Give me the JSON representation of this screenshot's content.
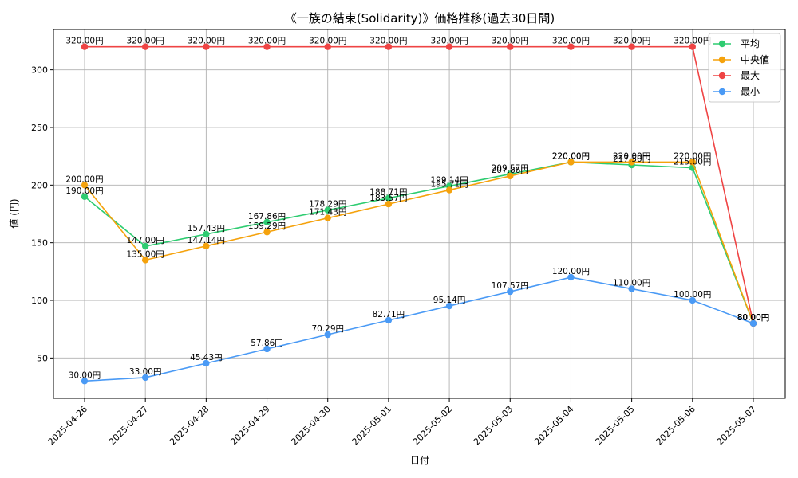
{
  "chart_data": {
    "type": "line",
    "title": "《一族の結束(Solidarity)》価格推移(過去30日間)",
    "xlabel": "日付",
    "ylabel": "値 (円)",
    "categories": [
      "2025-04-26",
      "2025-04-27",
      "2025-04-28",
      "2025-04-29",
      "2025-04-30",
      "2025-05-01",
      "2025-05-02",
      "2025-05-03",
      "2025-05-04",
      "2025-05-05",
      "2025-05-06",
      "2025-05-07"
    ],
    "yticks": [
      50,
      100,
      150,
      200,
      250,
      300
    ],
    "ylim": [
      15,
      335
    ],
    "grid": true,
    "legend_position": "top-right",
    "label_suffix": "円",
    "series": [
      {
        "name": "平均",
        "color": "#2ecc71",
        "values": [
          190.0,
          147.0,
          157.43,
          167.86,
          178.29,
          188.71,
          199.14,
          209.57,
          220.0,
          217.5,
          215.0,
          80.0
        ]
      },
      {
        "name": "中央値",
        "color": "#f5a20c",
        "values": [
          200.0,
          135.0,
          147.14,
          159.29,
          171.43,
          183.57,
          195.71,
          207.86,
          220.0,
          220.0,
          220.0,
          80.0
        ]
      },
      {
        "name": "最大",
        "color": "#ef4444",
        "values": [
          320.0,
          320.0,
          320.0,
          320.0,
          320.0,
          320.0,
          320.0,
          320.0,
          320.0,
          320.0,
          320.0,
          80.0
        ]
      },
      {
        "name": "最小",
        "color": "#4a9af5",
        "values": [
          30.0,
          33.0,
          45.43,
          57.86,
          70.29,
          82.71,
          95.14,
          107.57,
          120.0,
          110.0,
          100.0,
          80.0
        ]
      }
    ]
  }
}
